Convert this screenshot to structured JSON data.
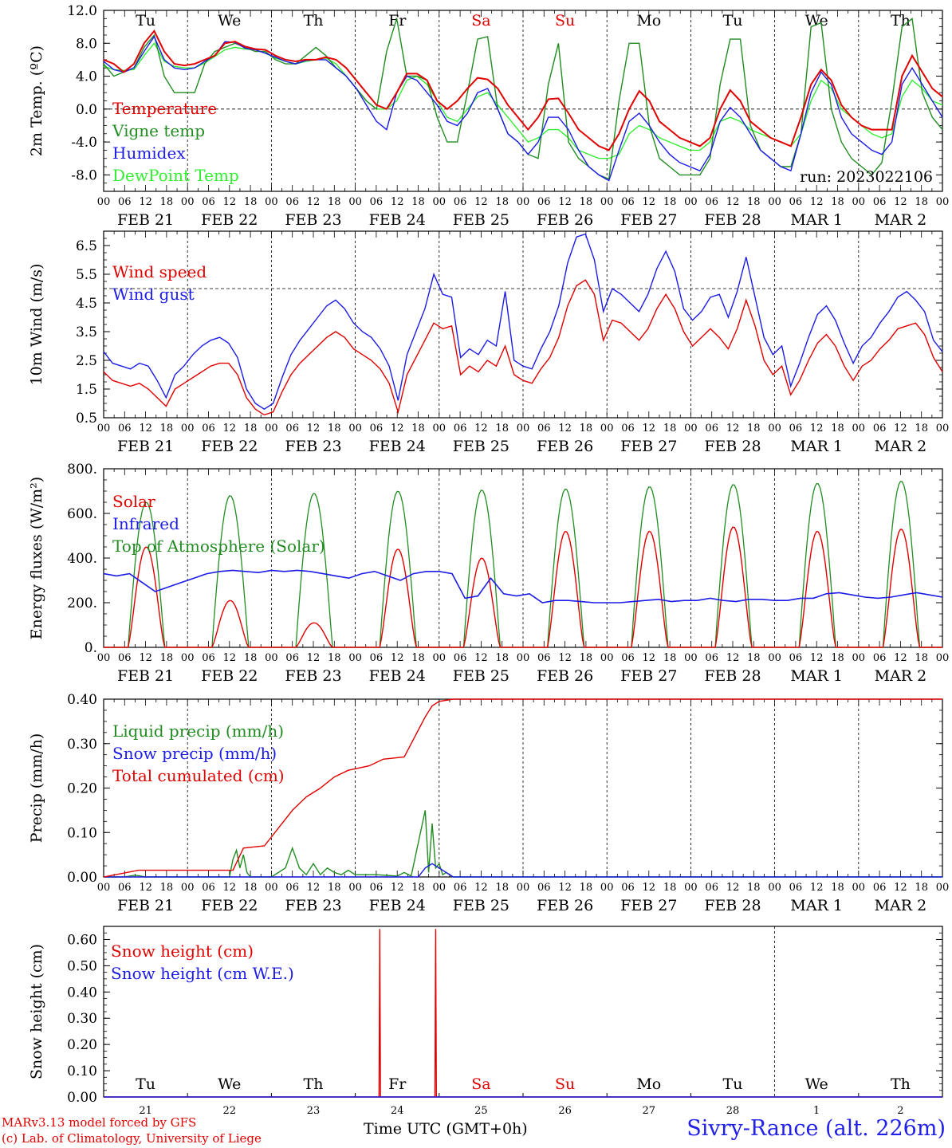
{
  "colors": {
    "red": "#e00000",
    "green": "#218c21",
    "blue": "#1c1ce6",
    "lightgreen": "#33ee33",
    "saturday": "#e00000",
    "sunday": "#e00000"
  },
  "hour_ticks": [
    "00",
    "06",
    "12",
    "18"
  ],
  "date_labels": [
    "FEB 21",
    "FEB 22",
    "FEB 23",
    "FEB 24",
    "FEB 25",
    "FEB 26",
    "FEB 27",
    "FEB 28",
    "MAR  1",
    "MAR  2"
  ],
  "day_labels": [
    "Tu",
    "We",
    "Th",
    "Fr",
    "Sa",
    "Su",
    "Mo",
    "Tu",
    "We",
    "Th"
  ],
  "day_numbers": [
    "21",
    "22",
    "23",
    "24",
    "25",
    "26",
    "27",
    "28",
    "1",
    "2"
  ],
  "footer": {
    "model": "MARv3.13 model forced by GFS",
    "copyright": "(c) Lab. of Climatology, University of Liege",
    "time_axis": "Time UTC (GMT+0h)",
    "station": "Sivry-Rance (alt. 226m)"
  },
  "chart_data": [
    {
      "type": "line",
      "ylabel": "2m Temp. (ºC)",
      "ylim": [
        -10,
        12
      ],
      "yticks": [
        "12.0",
        "8.0",
        "4.0",
        "0.0",
        "-4.0",
        "-8.0"
      ],
      "ytick_values": [
        12,
        8,
        4,
        0,
        -4,
        -8
      ],
      "zero_line": 0,
      "run_label": "run: 2023022106",
      "x_unit": "hours since 2023-02-21 00 UTC, 3-hourly",
      "series": [
        {
          "name": "Temperature",
          "color": "red",
          "values": [
            6,
            5.5,
            4.5,
            5.5,
            8,
            9.5,
            7,
            5.5,
            5.3,
            5.5,
            6,
            6.5,
            8,
            8.2,
            7.6,
            7.3,
            7.2,
            6.5,
            6,
            5.8,
            6,
            6,
            6.3,
            6,
            5,
            3.5,
            2,
            0.5,
            0,
            2,
            4.3,
            4.3,
            3.5,
            1,
            0,
            1,
            2.5,
            3.8,
            3.6,
            2.5,
            0.5,
            -1,
            -2.5,
            -1,
            1.2,
            1.3,
            -0.5,
            -2.5,
            -3.5,
            -4.5,
            -5,
            -3,
            0,
            2.2,
            1,
            -1.5,
            -2.5,
            -3.5,
            -4,
            -4.5,
            -3.5,
            0,
            2.3,
            1,
            -1.5,
            -2.5,
            -3.5,
            -4,
            -4.5,
            -1,
            3,
            4.8,
            3.5,
            0.5,
            -1,
            -2,
            -2.5,
            -2.5,
            -2.5,
            4,
            6.5,
            4.5,
            2.5,
            1.5
          ]
        },
        {
          "name": "Vigne temp",
          "color": "green",
          "values": [
            5.5,
            4,
            4.5,
            5,
            7.5,
            9,
            4,
            2,
            2,
            2,
            5.5,
            7,
            7.5,
            8,
            7.5,
            7,
            7,
            6,
            5.5,
            5.5,
            6.5,
            7.5,
            6.5,
            5,
            4,
            2.5,
            1,
            0,
            7,
            11,
            4,
            4,
            3.5,
            -1,
            -4,
            -4,
            2,
            8.5,
            8.8,
            0,
            -3,
            -4,
            -5.5,
            -6,
            3,
            8,
            -4,
            -6,
            -7,
            -8,
            -8.5,
            1,
            8,
            8,
            -2,
            -6,
            -7,
            -8,
            -8,
            -8,
            -6,
            3,
            8.5,
            8.5,
            -2,
            -5,
            -6,
            -7,
            -7,
            -3,
            10,
            10.5,
            0,
            -4,
            -6,
            -7,
            -8,
            -6.5,
            1,
            10,
            11,
            2,
            -1,
            -2.5
          ]
        },
        {
          "name": "Humidex",
          "color": "blue",
          "values": [
            5.8,
            4.8,
            4.5,
            5,
            7,
            8.8,
            6,
            5,
            4.8,
            5,
            5.8,
            6.5,
            8.2,
            8.1,
            7.4,
            7.2,
            6.8,
            6.3,
            5.8,
            5.5,
            5.9,
            6,
            6,
            5,
            4,
            2.5,
            0.5,
            -1.5,
            -2.5,
            2,
            4,
            3.5,
            2,
            0.5,
            -1.5,
            -2,
            -0.5,
            2,
            2.5,
            0,
            -3,
            -4,
            -5.5,
            -4,
            -1,
            -1,
            -2.5,
            -5,
            -7,
            -8,
            -8.7,
            -5,
            -1.5,
            -0.5,
            -2,
            -4,
            -5.5,
            -6.5,
            -7,
            -7.5,
            -5.5,
            -1.5,
            0.2,
            -1,
            -3,
            -5,
            -6,
            -7,
            -7.5,
            -3,
            2,
            4.5,
            3,
            -1,
            -3,
            -4,
            -5,
            -5.5,
            -4,
            3,
            5,
            3,
            1,
            -1
          ]
        },
        {
          "name": "DewPoint Temp",
          "color": "lightgreen",
          "values": [
            5.2,
            4.8,
            4.7,
            4.8,
            6.5,
            8,
            5.8,
            5.2,
            5,
            5,
            5.6,
            6.4,
            7.2,
            7.5,
            7.3,
            7.2,
            6.8,
            6.2,
            5.8,
            5.5,
            5.8,
            6,
            6.2,
            5.5,
            4,
            2.5,
            1,
            0,
            0,
            1,
            3.5,
            4,
            3,
            1,
            -1,
            -1.5,
            0,
            1.5,
            2,
            0.5,
            -1,
            -2.5,
            -4,
            -3.5,
            -2.5,
            -2.5,
            -3.5,
            -5,
            -5.5,
            -6,
            -6,
            -5.5,
            -3,
            -2,
            -2.5,
            -3.5,
            -4,
            -4.5,
            -5,
            -5,
            -4,
            -1.5,
            -1,
            -1.5,
            -2.5,
            -3,
            -3.5,
            -4,
            -4.5,
            -3,
            1,
            3.5,
            2.5,
            0,
            -1,
            -2,
            -3,
            -3.5,
            -3,
            1.5,
            3.5,
            2.5,
            1,
            0.5
          ]
        }
      ]
    },
    {
      "type": "line",
      "ylabel": "10m Wind (m/s)",
      "ylim": [
        0.5,
        7
      ],
      "yticks": [
        "6.5",
        "5.5",
        "4.5",
        "3.5",
        "2.5",
        "1.5",
        "0.5"
      ],
      "ytick_values": [
        6.5,
        5.5,
        4.5,
        3.5,
        2.5,
        1.5,
        0.5
      ],
      "ref_line": 5,
      "x_unit": "hours since 2023-02-21 00 UTC, 3-hourly",
      "series": [
        {
          "name": "Wind speed",
          "color": "red",
          "values": [
            2.1,
            1.8,
            1.7,
            1.6,
            1.7,
            1.5,
            1.2,
            0.9,
            1.5,
            1.7,
            1.9,
            2.1,
            2.3,
            2.4,
            2.4,
            2,
            1.2,
            0.8,
            0.6,
            0.7,
            1.4,
            2,
            2.4,
            2.7,
            3,
            3.3,
            3.5,
            3.3,
            2.9,
            2.7,
            2.5,
            2.2,
            1.7,
            0.7,
            2,
            2.6,
            3.2,
            3.8,
            3.6,
            3.7,
            2,
            2.3,
            2.1,
            2.5,
            2.3,
            3,
            2,
            1.8,
            1.7,
            2.2,
            2.6,
            3.3,
            4.4,
            5.1,
            5.3,
            4.8,
            3.2,
            3.9,
            3.8,
            3.5,
            3.2,
            3.6,
            4.3,
            4.8,
            4.3,
            3.5,
            3.0,
            3.3,
            3.6,
            3.3,
            2.9,
            3.6,
            4.6,
            3.7,
            2.5,
            2.0,
            2.3,
            1.3,
            1.8,
            2.5,
            3.1,
            3.4,
            3.0,
            2.3,
            1.8,
            2.3,
            2.5,
            2.9,
            3.2,
            3.6,
            3.7,
            3.8,
            3.4,
            2.6,
            2.1
          ]
        },
        {
          "name": "Wind gust",
          "color": "blue",
          "values": [
            2.8,
            2.4,
            2.3,
            2.2,
            2.4,
            2.3,
            1.8,
            1.2,
            2.0,
            2.3,
            2.7,
            3.0,
            3.2,
            3.3,
            3.1,
            2.6,
            1.5,
            1.0,
            0.8,
            1.0,
            1.9,
            2.7,
            3.2,
            3.6,
            4.0,
            4.4,
            4.6,
            4.3,
            3.8,
            3.5,
            3.3,
            2.9,
            2.3,
            1.1,
            2.7,
            3.5,
            4.3,
            5.5,
            4.8,
            4.7,
            2.6,
            2.9,
            2.7,
            3.2,
            3.0,
            4.9,
            2.5,
            2.3,
            2.2,
            2.9,
            3.5,
            4.4,
            5.9,
            6.8,
            6.9,
            6.0,
            4.2,
            5.0,
            4.8,
            4.5,
            4.2,
            4.8,
            5.7,
            6.3,
            5.6,
            4.3,
            3.9,
            4.2,
            4.7,
            4.8,
            4.0,
            4.9,
            6.1,
            4.7,
            3.3,
            2.7,
            3.0,
            1.6,
            2.4,
            3.3,
            4.1,
            4.4,
            3.9,
            3.1,
            2.4,
            3.0,
            3.3,
            3.8,
            4.2,
            4.7,
            4.9,
            4.6,
            4.2,
            3.2,
            2.8
          ]
        }
      ]
    },
    {
      "type": "line",
      "ylabel": "Energy fluxes (W/m²)",
      "ylim": [
        0,
        800
      ],
      "yticks": [
        "800.",
        "600.",
        "400.",
        "200.",
        "0."
      ],
      "ytick_values": [
        800,
        600,
        400,
        200,
        0
      ],
      "x_unit": "hours since 2023-02-21 00 UTC",
      "day_peaks": {
        "solar": [
          450,
          210,
          110,
          440,
          400,
          520,
          520,
          540,
          520,
          530
        ],
        "toa": [
          650,
          680,
          690,
          700,
          705,
          710,
          720,
          730,
          735,
          745
        ]
      },
      "series": [
        {
          "name": "Solar",
          "color": "red"
        },
        {
          "name": "Infrared",
          "color": "blue",
          "values": [
            330,
            320,
            330,
            290,
            250,
            270,
            290,
            310,
            330,
            340,
            345,
            340,
            335,
            345,
            340,
            345,
            340,
            330,
            320,
            310,
            330,
            340,
            320,
            300,
            330,
            340,
            340,
            330,
            220,
            230,
            310,
            240,
            230,
            240,
            200,
            210,
            210,
            205,
            200,
            200,
            200,
            205,
            210,
            215,
            205,
            210,
            210,
            220,
            210,
            205,
            215,
            215,
            210,
            210,
            220,
            220,
            240,
            245,
            235,
            225,
            220,
            225,
            235,
            245,
            235,
            225
          ]
        },
        {
          "name": "Top of Atmosphere (Solar)",
          "color": "green"
        }
      ]
    },
    {
      "type": "line",
      "ylabel": "Precip (mm/h)",
      "ylim": [
        0,
        0.4
      ],
      "yticks": [
        "0.40",
        "0.30",
        "0.20",
        "0.10",
        "0.00"
      ],
      "ytick_values": [
        0.4,
        0.3,
        0.2,
        0.1,
        0
      ],
      "x_unit": "hours since 2023-02-21 00 UTC",
      "series": [
        {
          "name": "Liquid precip (mm/h)",
          "color": "green",
          "points": [
            [
              0,
              0
            ],
            [
              6,
              0
            ],
            [
              9,
              0.004
            ],
            [
              12,
              0
            ],
            [
              36,
              0
            ],
            [
              37,
              0.04
            ],
            [
              38,
              0.06
            ],
            [
              39,
              0.02
            ],
            [
              40,
              0.05
            ],
            [
              41,
              0.01
            ],
            [
              42,
              0
            ],
            [
              48,
              0
            ],
            [
              52,
              0.02
            ],
            [
              54,
              0.065
            ],
            [
              56,
              0.02
            ],
            [
              58,
              0.005
            ],
            [
              60,
              0.03
            ],
            [
              62,
              0.005
            ],
            [
              64,
              0.02
            ],
            [
              66,
              0.01
            ],
            [
              68,
              0.005
            ],
            [
              70,
              0.015
            ],
            [
              72,
              0.005
            ],
            [
              78,
              0.005
            ],
            [
              84,
              0.002
            ],
            [
              86,
              0.01
            ],
            [
              88,
              0.002
            ],
            [
              92,
              0.15
            ],
            [
              93,
              0.01
            ],
            [
              94,
              0.12
            ],
            [
              95,
              0.02
            ],
            [
              96,
              0.03
            ],
            [
              97,
              0.005
            ],
            [
              98,
              0.01
            ],
            [
              100,
              0
            ],
            [
              240,
              0
            ]
          ]
        },
        {
          "name": "Snow precip (mm/h)",
          "color": "blue",
          "points": [
            [
              0,
              0
            ],
            [
              90,
              0
            ],
            [
              92,
              0.02
            ],
            [
              94,
              0.03
            ],
            [
              96,
              0.02
            ],
            [
              98,
              0.01
            ],
            [
              100,
              0
            ],
            [
              240,
              0
            ]
          ]
        },
        {
          "name": "Total cumulated (cm)",
          "color": "red",
          "points": [
            [
              0,
              0
            ],
            [
              10,
              0.015
            ],
            [
              37,
              0.015
            ],
            [
              40,
              0.065
            ],
            [
              46,
              0.07
            ],
            [
              50,
              0.11
            ],
            [
              54,
              0.15
            ],
            [
              58,
              0.18
            ],
            [
              62,
              0.2
            ],
            [
              66,
              0.225
            ],
            [
              70,
              0.24
            ],
            [
              76,
              0.25
            ],
            [
              80,
              0.265
            ],
            [
              86,
              0.27
            ],
            [
              88,
              0.3
            ],
            [
              90,
              0.33
            ],
            [
              92,
              0.36
            ],
            [
              94,
              0.385
            ],
            [
              96,
              0.395
            ],
            [
              100,
              0.4
            ],
            [
              240,
              0.4
            ]
          ]
        }
      ]
    },
    {
      "type": "line",
      "ylabel": "Snow height (cm)",
      "ylim": [
        0,
        0.65
      ],
      "yticks": [
        "0.60",
        "0.50",
        "0.40",
        "0.30",
        "0.20",
        "0.10",
        "0.00"
      ],
      "ytick_values": [
        0.6,
        0.5,
        0.4,
        0.3,
        0.2,
        0.1,
        0
      ],
      "x_unit": "hours since 2023-02-21 00 UTC",
      "series": [
        {
          "name": "Snow height (cm)",
          "color": "red",
          "points": [
            [
              0,
              0
            ],
            [
              78.8,
              0
            ],
            [
              79,
              0.64
            ],
            [
              79.2,
              0
            ],
            [
              94.8,
              0
            ],
            [
              95,
              0.64
            ],
            [
              95.2,
              0
            ],
            [
              240,
              0
            ]
          ]
        },
        {
          "name": "Snow height (cm W.E.)",
          "color": "blue",
          "points": [
            [
              0,
              0
            ],
            [
              240,
              0
            ]
          ]
        }
      ]
    }
  ]
}
